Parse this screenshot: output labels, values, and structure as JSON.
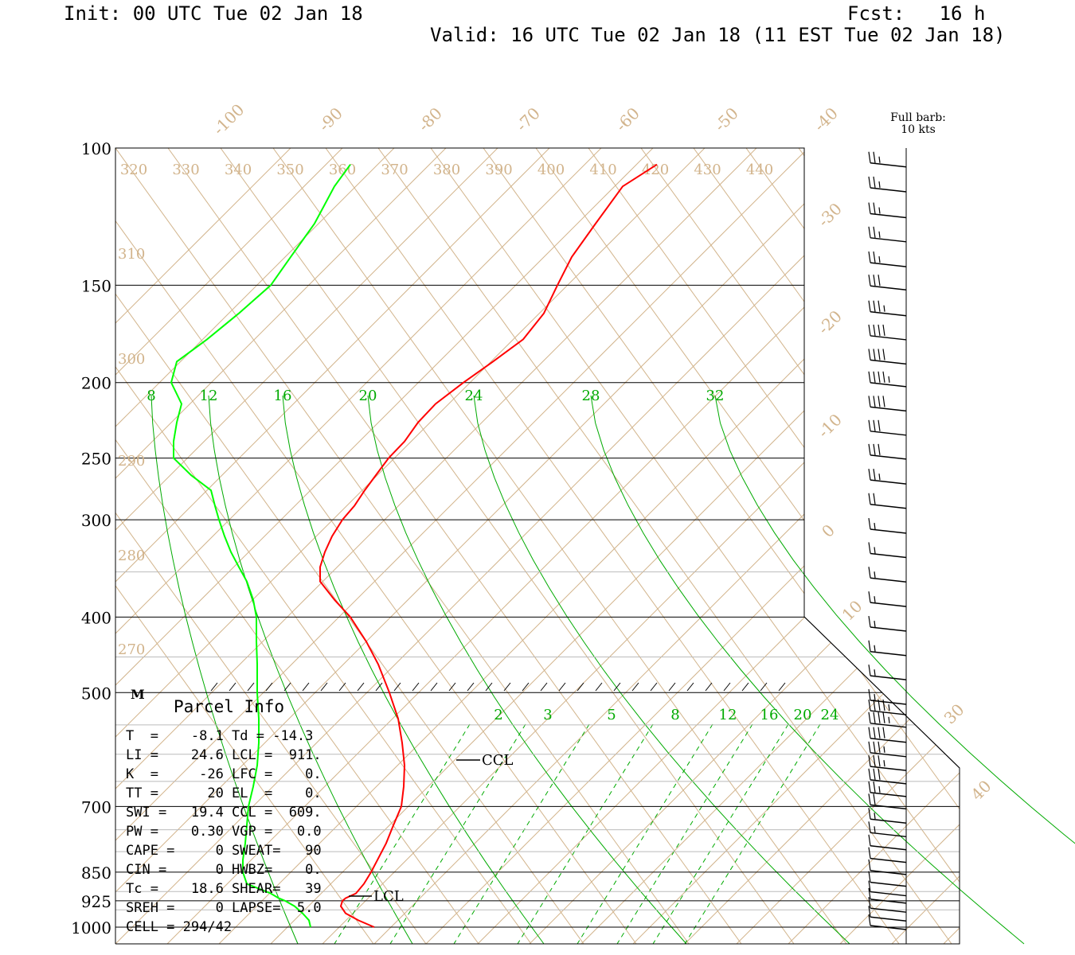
{
  "header": {
    "init": "Init: 00 UTC Tue 02 Jan 18",
    "fcst": "Fcst:   16 h",
    "valid": "Valid: 16 UTC Tue 02 Jan 18 (11 EST Tue 02 Jan 18)"
  },
  "barb_legend": {
    "line1": "Full barb:",
    "line2": "10 kts"
  },
  "colors": {
    "temperature": "#ff0000",
    "dewpoint": "#00ff00",
    "mixing_ratio": "#00aa00",
    "thermal": "#d2b48c",
    "frame": "#000000"
  },
  "chart_data": {
    "type": "line",
    "y_scale": "log-pressure",
    "pressure_ticks": [
      100,
      150,
      200,
      250,
      300,
      400,
      500,
      700,
      850,
      925,
      1000
    ],
    "pressure_tick_labels": [
      "100",
      "150",
      "200",
      "250",
      "300",
      "400",
      "500",
      "700",
      "850",
      "925",
      "1000"
    ],
    "isotherm_labels": [
      "-100",
      "-90",
      "-80",
      "-70",
      "-60",
      "-50",
      "-40",
      "-30",
      "-20",
      "-10",
      "0",
      "10",
      "30",
      "40"
    ],
    "theta_labels_top": [
      "320",
      "330",
      "340",
      "350",
      "360",
      "370",
      "380",
      "390",
      "400",
      "410",
      "420",
      "430",
      "440"
    ],
    "theta_labels_left": [
      "310",
      "300",
      "290",
      "280",
      "270"
    ],
    "mixing_ratio_labels_upper": [
      "8",
      "12",
      "16",
      "20",
      "24",
      "28",
      "32"
    ],
    "mixing_ratio_labels_lower": [
      "2",
      "3",
      "5",
      "8",
      "12",
      "16",
      "20",
      "24"
    ],
    "series": [
      {
        "pressure": [
          105,
          112,
          125,
          138,
          150,
          163,
          176,
          188,
          200,
          213,
          225,
          238,
          250,
          263,
          275,
          288,
          300,
          315,
          330,
          345,
          360,
          380,
          400,
          430,
          460,
          500,
          540,
          580,
          620,
          660,
          700,
          740,
          780,
          820,
          850,
          880,
          905,
          918,
          925,
          940,
          960,
          980,
          1000
        ]
      },
      {
        "pressure": [
          105,
          112,
          125,
          138,
          150,
          163,
          176,
          188,
          200,
          213,
          225,
          238,
          250,
          263,
          275,
          288,
          300,
          315,
          330,
          345,
          360,
          380,
          400,
          430,
          460,
          500,
          540,
          580,
          620,
          660,
          700,
          740,
          780,
          820,
          850,
          880,
          905,
          918,
          925,
          940,
          960,
          980,
          1000
        ]
      }
    ],
    "wind_barbs": {
      "pressure": [
        105,
        113,
        122,
        131,
        141,
        151,
        163,
        175,
        188,
        201,
        216,
        232,
        249,
        268,
        288,
        310,
        333,
        358,
        385,
        414,
        445,
        478,
        514,
        530,
        550,
        575,
        600,
        625,
        650,
        675,
        700,
        730,
        760,
        790,
        820,
        850,
        880,
        905,
        925,
        950,
        975,
        1000
      ],
      "speed_kts": [
        25,
        25,
        25,
        25,
        25,
        30,
        35,
        40,
        40,
        45,
        40,
        30,
        30,
        25,
        20,
        15,
        15,
        15,
        15,
        15,
        15,
        15,
        15,
        45,
        45,
        40,
        35,
        35,
        30,
        25,
        20,
        15,
        15,
        10,
        10,
        10,
        10,
        10,
        10,
        10,
        10,
        10
      ]
    },
    "annotations": {
      "ccl_label": "CCL",
      "lcl_label": "LCL",
      "m_marker": "M"
    },
    "parcel_info": {
      "title": "Parcel Info",
      "rows": [
        "T  =    -8.1 Td = -14.3",
        "LI =    24.6 LCL =  911.",
        "K  =     -26 LFC =    0.",
        "TT =      20 EL  =    0.",
        "SWI =   19.4 CCL =  609.",
        "PW =    0.30 VGP =   0.0",
        "CAPE =     0 SWEAT=   90",
        "CIN =      0 HWBZ=    0.",
        "Tc =    18.6 SHEAR=   39",
        "SREH =     0 LAPSE=  5.0",
        "CELL = 294/42"
      ]
    }
  }
}
